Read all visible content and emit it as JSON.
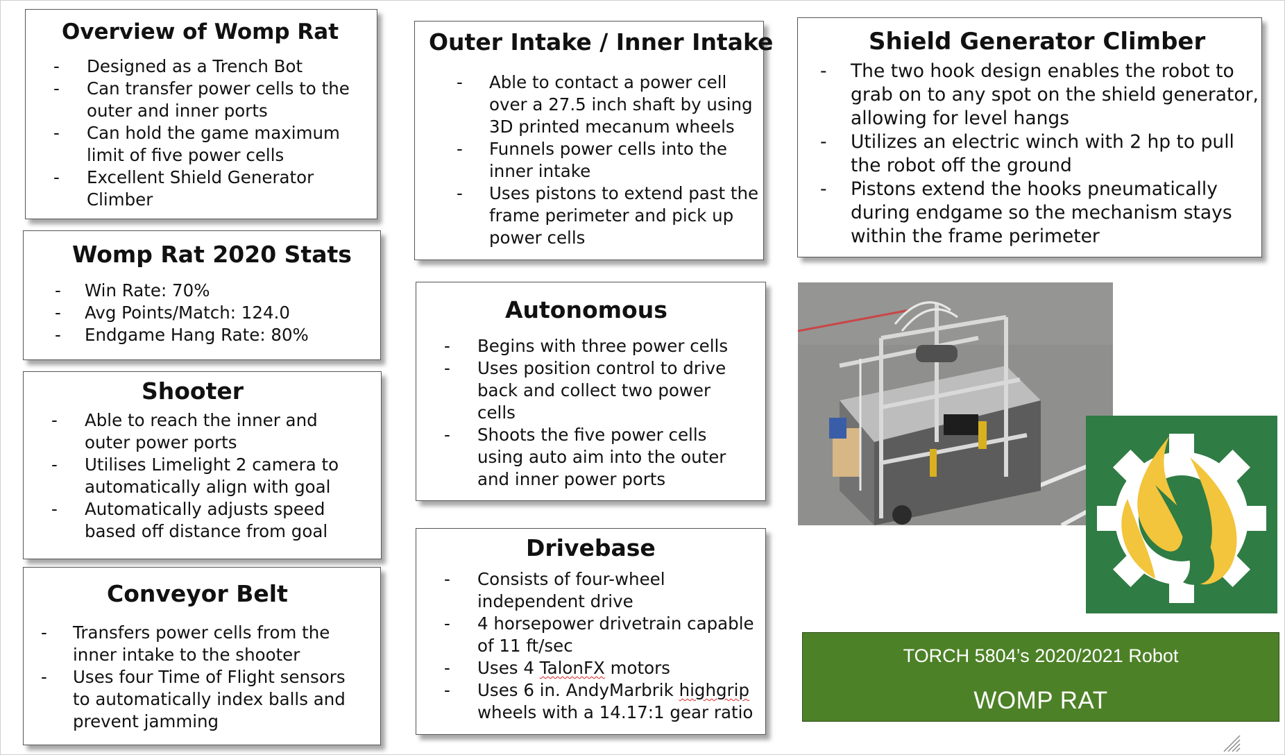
{
  "overview": {
    "title": "Overview of Womp Rat",
    "items": [
      [
        "Designed as a Trench Bot"
      ],
      [
        "Can transfer power cells to the",
        "outer and inner ports"
      ],
      [
        "Can hold the game  maximum",
        "limit of five power cells"
      ],
      [
        "Excellent Shield Generator",
        "Climber"
      ]
    ]
  },
  "stats": {
    "title": "Womp Rat 2020 Stats",
    "items": [
      [
        "Win Rate: 70%"
      ],
      [
        "Avg Points/Match: 124.0"
      ],
      [
        "Endgame Hang Rate: 80%"
      ]
    ]
  },
  "shooter": {
    "title": "Shooter",
    "items": [
      [
        "Able to reach the inner and",
        "outer power ports"
      ],
      [
        "Utilises Limelight 2 camera to",
        "automatically align with goal"
      ],
      [
        "Automatically adjusts speed",
        "based off distance from goal"
      ]
    ]
  },
  "conveyor": {
    "title": "Conveyor Belt",
    "items": [
      [
        "Transfers power cells from the",
        "inner intake to the shooter"
      ],
      [
        "Uses four Time of Flight sensors",
        "to automatically index balls and",
        "prevent jamming"
      ]
    ]
  },
  "intake": {
    "title": "Outer Intake / Inner Intake",
    "items": [
      [
        "Able to contact a power cell",
        "over a 27.5 inch shaft by using",
        "3D printed mecanum wheels"
      ],
      [
        "Funnels power cells into the",
        "inner intake"
      ],
      [
        "Uses pistons to extend past the",
        "frame perimeter and pick up",
        "power cells"
      ]
    ]
  },
  "autonomous": {
    "title": "Autonomous",
    "items": [
      [
        "Begins with three power cells"
      ],
      [
        "Uses position control  to drive",
        "back and collect two power",
        "cells"
      ],
      [
        "Shoots the five power cells",
        "using auto aim into the outer",
        "and inner power ports"
      ]
    ]
  },
  "drivebase": {
    "title": "Drivebase",
    "items": [
      [
        "Consists of four-wheel",
        "independent drive"
      ],
      [
        "4 horsepower drivetrain capable",
        "of 11 ft/sec"
      ],
      [
        "Uses 4 TalonFX motors"
      ],
      [
        "Uses 6 in. AndyMarbrik highgrip",
        "wheels with a 14.17:1 gear ratio"
      ]
    ],
    "spell_flagged": [
      "TalonFX",
      "highgrip"
    ]
  },
  "climber": {
    "title": "Shield Generator Climber",
    "items": [
      [
        "The two hook design enables the robot to",
        "grab on to any spot on the shield generator,",
        "allowing for level hangs"
      ],
      [
        "Utilizes an electric winch with 2 hp to pull",
        "the robot off the ground"
      ],
      [
        "Pistons extend the hooks pneumatically",
        "during endgame so the mechanism stays",
        "within the frame perimeter"
      ]
    ]
  },
  "bullet_glyph": "-",
  "banner": {
    "subtitle": "TORCH 5804’s 2020/2021 Robot",
    "title": "WOMP RAT"
  },
  "images": {
    "robot_photo": "robot-photo",
    "logo": "torch-gear-flame-logo"
  },
  "colors": {
    "banner_bg": "#4d8127",
    "logo_bg": "#2f7c44",
    "logo_flame": "#f2c53d",
    "text": "#111111"
  }
}
